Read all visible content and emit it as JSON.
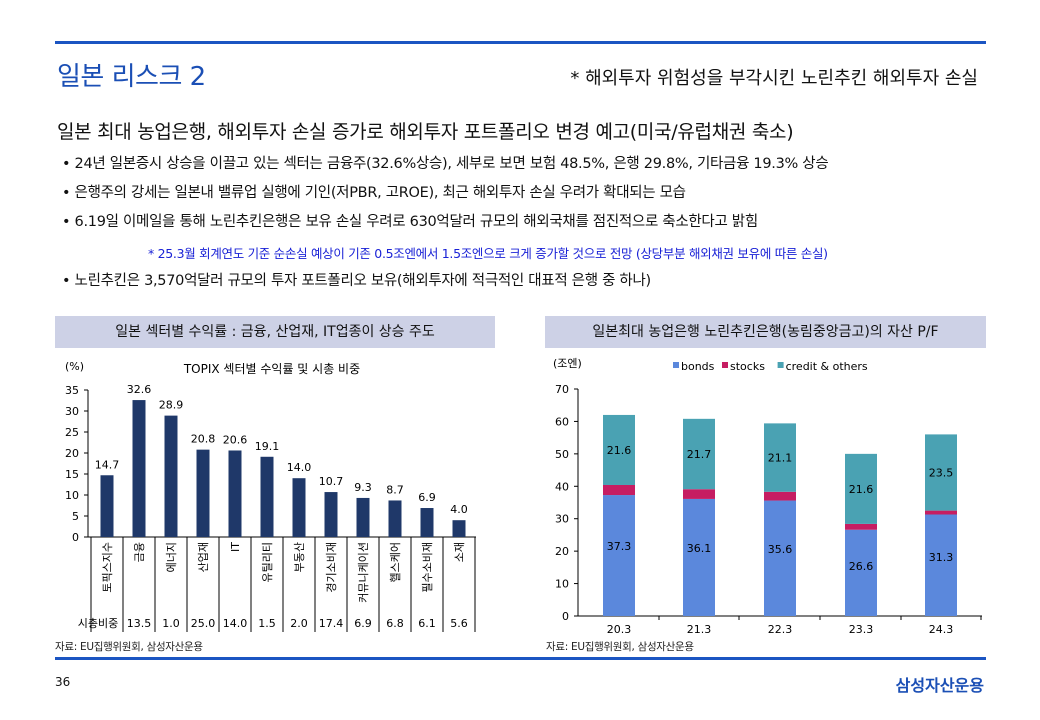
{
  "header": {
    "title": "일본 리스크 2",
    "subtitle": "* 해외투자 위험성을 부각시킨 노린추킨 해외투자 손실"
  },
  "heading": "일본 최대 농업은행, 해외투자 손실 증가로 해외투자 포트폴리오 변경 예고(미국/유럽채권 축소)",
  "bullets": [
    "• 24년 일본증시 상승을 이끌고 있는 섹터는 금융주(32.6%상승),  세부로 보면 보험 48.5%, 은행 29.8%, 기타금융  19.3% 상승",
    "• 은행주의 강세는 일본내 밸류업 실행에 기인(저PBR, 고ROE), 최근 해외투자 손실 우려가 확대되는 모습",
    "• 6.19일 이메일을 통해 노린추킨은행은  보유 손실 우려로 630억달러 규모의 해외국채를 점진적으로 축소한다고 밝힘",
    "• 노린추킨은  3,570억달러 규모의 투자 포트폴리오 보유(해외투자에  적극적인 대표적 은행 중 하나)"
  ],
  "note": "* 25.3월 회계연도 기준 순손실 예상이 기존 0.5조엔에서 1.5조엔으로 크게 증가할 것으로 전망 (상당부분 해외채권 보유에 따른 손실)",
  "left_panel": {
    "header": "일본 섹터별 수익률 : 금융, 산업재, IT업종이 상승 주도",
    "source": "자료: EU집행위원회, 삼성자산운용"
  },
  "right_panel": {
    "header": "일본최대 농업은행 노린추킨은행(농림중앙금고)의  자산 P/F",
    "source": "자료: EU집행위원회, 삼성자산운용"
  },
  "chart_data": [
    {
      "type": "bar",
      "title": "TOPIX 섹터별 수익률 및 시총 비중",
      "ylabel": "(%)",
      "ylim": [
        0,
        35
      ],
      "yticks": [
        0,
        5,
        10,
        15,
        20,
        25,
        30,
        35
      ],
      "categories": [
        "토픽스지수",
        "금융",
        "에너지",
        "산업재",
        "IT",
        "유틸리티",
        "부동산",
        "경기소비재",
        "커뮤니케이션",
        "헬스케어",
        "필수소비재",
        "소재"
      ],
      "values": [
        14.7,
        32.6,
        28.9,
        20.8,
        20.6,
        19.1,
        14.0,
        10.7,
        9.3,
        8.7,
        6.9,
        4.0
      ],
      "labels": [
        "14.7",
        "32.6",
        "28.9",
        "20.8",
        "20.6",
        "19.1",
        "14.0",
        "10.7",
        "9.3",
        "8.7",
        "6.9",
        "4.0"
      ],
      "table_label": "시총비중",
      "market_cap_weight": [
        "",
        "13.5",
        "1.0",
        "25.0",
        "14.0",
        "1.5",
        "2.0",
        "17.4",
        "6.9",
        "6.8",
        "6.1",
        "5.6"
      ],
      "color": "#1f3869"
    },
    {
      "type": "bar",
      "stacked": true,
      "ylabel": "(조엔)",
      "ylim": [
        0,
        70
      ],
      "yticks": [
        0,
        10,
        20,
        30,
        40,
        50,
        60,
        70
      ],
      "categories": [
        "20.3",
        "21.3",
        "22.3",
        "23.3",
        "24.3"
      ],
      "series": [
        {
          "name": "bonds",
          "values": [
            37.3,
            36.1,
            35.6,
            26.6,
            31.3
          ],
          "labels": [
            "37.3",
            "36.1",
            "35.6",
            "26.6",
            "31.3"
          ],
          "color": "#5b88dc"
        },
        {
          "name": "stocks",
          "values": [
            3.1,
            3.0,
            2.7,
            1.8,
            1.2
          ],
          "color": "#c61d62"
        },
        {
          "name": "credit & others",
          "values": [
            21.6,
            21.7,
            21.1,
            21.6,
            23.5
          ],
          "labels": [
            "21.6",
            "21.7",
            "21.1",
            "21.6",
            "23.5"
          ],
          "color": "#4aa2b3"
        }
      ],
      "legend": "top"
    }
  ],
  "footer": {
    "page": "36",
    "logo": "삼성자산운용"
  }
}
